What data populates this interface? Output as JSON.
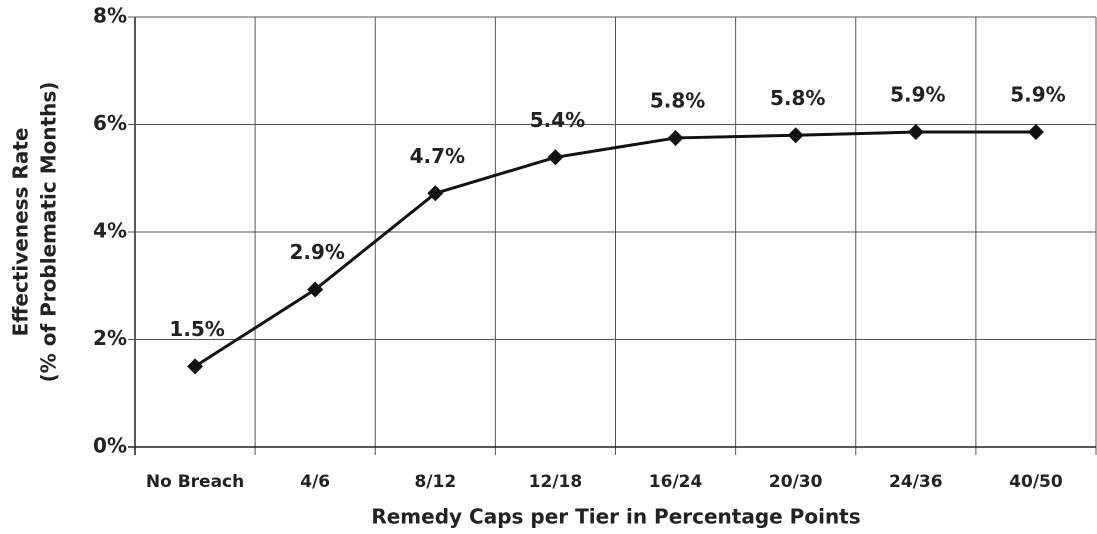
{
  "chart_data": {
    "type": "line",
    "xlabel": "Remedy Caps per Tier in Percentage Points",
    "ylabel": [
      "Effectiveness Rate",
      "(% of Problematic Months)"
    ],
    "categories": [
      "No Breach",
      "4/6",
      "8/12",
      "12/18",
      "16/24",
      "20/30",
      "24/36",
      "40/50"
    ],
    "values": [
      1.5,
      2.93,
      4.72,
      5.39,
      5.75,
      5.8,
      5.86,
      5.86
    ],
    "value_labels": [
      "1.5%",
      "2.9%",
      "4.7%",
      "5.4%",
      "5.8%",
      "5.8%",
      "5.9%",
      "5.9%"
    ],
    "color": "#111111",
    "ylim": [
      0,
      8
    ],
    "yticks": [
      {
        "value": 0,
        "label": "0%"
      },
      {
        "value": 2,
        "label": "2%"
      },
      {
        "value": 4,
        "label": "4%"
      },
      {
        "value": 6,
        "label": "6%"
      },
      {
        "value": 8,
        "label": "8%"
      }
    ],
    "grid": true
  }
}
